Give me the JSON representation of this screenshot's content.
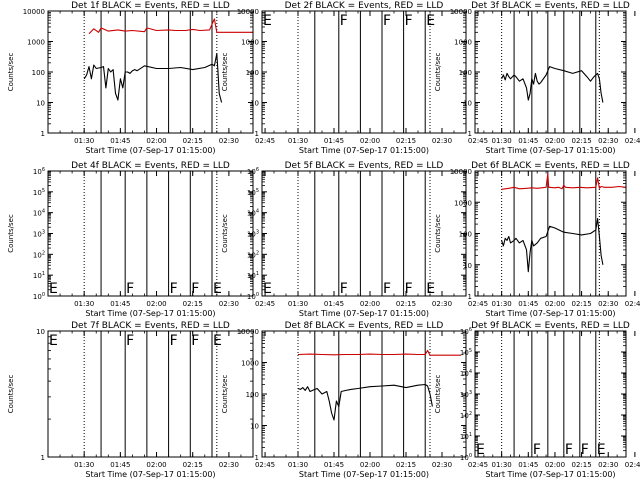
{
  "colors": {
    "events": "#000000",
    "lld": "#cc0000",
    "axes": "#000000",
    "background": "#ffffff"
  },
  "chart_data": [
    {
      "type": "line",
      "title": "Det 1f BLACK = Events, RED = LLD",
      "xlabel": "Start Time (07-Sep-17 01:15:00)",
      "ylabel": "Counts/sec",
      "scale": "log",
      "ylim": [
        1,
        10000
      ],
      "yticks": [
        "1",
        "10",
        "100",
        "1000",
        "10000"
      ],
      "xlim": [
        15,
        100
      ],
      "xticks": [
        "01:30",
        "01:45",
        "02:00",
        "02:15",
        "02:30",
        "02:45"
      ],
      "dotted_lines_min": [
        30,
        85,
        100
      ],
      "solid_lines_min": [
        37,
        47,
        56,
        65,
        74,
        83
      ],
      "markers": [],
      "series": [
        {
          "name": "LLD",
          "color_key": "lld",
          "x": [
            32,
            34,
            36,
            37,
            40,
            44,
            47,
            50,
            55,
            56,
            60,
            65,
            68,
            72,
            75,
            78,
            82,
            84,
            85,
            86,
            88,
            92,
            96,
            100
          ],
          "y": [
            1800,
            2600,
            2000,
            2800,
            2200,
            2400,
            2200,
            2300,
            2100,
            2800,
            2300,
            2400,
            2300,
            2300,
            2500,
            2300,
            2400,
            5500,
            2000,
            2000,
            2000,
            2000,
            2000,
            2000
          ]
        },
        {
          "name": "Events",
          "color_key": "events",
          "x": [
            30,
            31,
            32,
            33,
            34,
            35,
            37,
            38,
            39,
            40,
            41,
            42,
            43,
            44,
            45,
            46,
            47,
            48,
            49,
            50,
            51,
            52,
            55,
            60,
            65,
            70,
            75,
            80,
            83,
            84,
            85,
            85.5,
            86,
            87
          ],
          "y": [
            60,
            80,
            150,
            60,
            170,
            130,
            140,
            150,
            30,
            130,
            100,
            120,
            20,
            12,
            60,
            30,
            100,
            100,
            90,
            110,
            120,
            110,
            160,
            130,
            130,
            140,
            120,
            140,
            180,
            160,
            400,
            100,
            20,
            10
          ]
        }
      ]
    },
    {
      "type": "line",
      "title": "Det 2f BLACK = Events, RED = LLD",
      "xlabel": "Start Time (07-Sep-17 01:15:00)",
      "ylabel": "Counts/sec",
      "scale": "log",
      "ylim": [
        1,
        10000
      ],
      "yticks": [
        "1",
        "10",
        "100",
        "1000",
        "10000"
      ],
      "xlim": [
        15,
        100
      ],
      "xticks": [
        "01:30",
        "01:45",
        "02:00",
        "02:15",
        "02:30",
        "02:45"
      ],
      "dotted_lines_min": [
        15,
        30,
        85,
        100
      ],
      "solid_lines_min": [
        37,
        47,
        56,
        65,
        74,
        83
      ],
      "markers": [
        {
          "label": "E",
          "x": 15,
          "pos": "top"
        },
        {
          "label": "F",
          "x": 47,
          "pos": "top"
        },
        {
          "label": "F",
          "x": 65,
          "pos": "top"
        },
        {
          "label": "F",
          "x": 74,
          "pos": "top"
        },
        {
          "label": "E",
          "x": 83,
          "pos": "top"
        }
      ],
      "series": []
    },
    {
      "type": "line",
      "title": "Det 3f BLACK = Events, RED = LLD",
      "xlabel": "Start Time (07-Sep-17 01:15:00)",
      "ylabel": "Counts/sec",
      "scale": "log",
      "ylim": [
        1,
        10000
      ],
      "yticks": [
        "1",
        "10",
        "100",
        "1000",
        "10000"
      ],
      "xlim": [
        15,
        100
      ],
      "xticks": [
        "01:30",
        "01:45",
        "02:00",
        "02:15",
        "02:30",
        "02:45"
      ],
      "dotted_lines_min": [
        30,
        85,
        100
      ],
      "solid_lines_min": [
        37,
        47,
        56,
        65,
        74,
        83
      ],
      "markers": [],
      "series": [
        {
          "name": "Events",
          "color_key": "events",
          "x": [
            30,
            31,
            32,
            33,
            34,
            35,
            37,
            38,
            40,
            42,
            44,
            45,
            46,
            47,
            48,
            49,
            50,
            51,
            52,
            55,
            57,
            60,
            65,
            70,
            75,
            78,
            80,
            82,
            84,
            85,
            86,
            87
          ],
          "y": [
            60,
            80,
            55,
            90,
            70,
            60,
            80,
            70,
            50,
            60,
            30,
            12,
            20,
            60,
            40,
            90,
            50,
            40,
            45,
            80,
            150,
            130,
            110,
            90,
            110,
            70,
            50,
            70,
            90,
            60,
            20,
            10
          ]
        }
      ]
    },
    {
      "type": "line",
      "title": "Det 4f BLACK = Events, RED = LLD",
      "xlabel": "Start Time (07-Sep-17 01:15:00)",
      "ylabel": "Counts/sec",
      "scale": "log",
      "ylim": [
        1,
        1000000
      ],
      "yticks": [
        "10^0",
        "10^1",
        "10^2",
        "10^3",
        "10^4",
        "10^5",
        "10^6"
      ],
      "xlim": [
        15,
        100
      ],
      "xticks": [
        "01:30",
        "01:45",
        "02:00",
        "02:15",
        "02:30",
        "02:45"
      ],
      "dotted_lines_min": [
        15,
        30,
        85,
        100
      ],
      "solid_lines_min": [
        37,
        47,
        56,
        65,
        74,
        83
      ],
      "markers": [
        {
          "label": "E",
          "x": 15,
          "pos": "bottom"
        },
        {
          "label": "F",
          "x": 47,
          "pos": "bottom"
        },
        {
          "label": "F",
          "x": 65,
          "pos": "bottom"
        },
        {
          "label": "F",
          "x": 74,
          "pos": "bottom"
        },
        {
          "label": "E",
          "x": 83,
          "pos": "bottom"
        }
      ],
      "series": []
    },
    {
      "type": "line",
      "title": "Det 5f BLACK = Events, RED = LLD",
      "xlabel": "Start Time (07-Sep-17 01:15:00)",
      "ylabel": "Counts/sec",
      "scale": "log",
      "ylim": [
        1,
        1000000
      ],
      "yticks": [
        "10^0",
        "10^1",
        "10^2",
        "10^3",
        "10^4",
        "10^5",
        "10^6"
      ],
      "xlim": [
        15,
        100
      ],
      "xticks": [
        "01:30",
        "01:45",
        "02:00",
        "02:15",
        "02:30",
        "02:45"
      ],
      "dotted_lines_min": [
        15,
        30,
        85,
        100
      ],
      "solid_lines_min": [
        37,
        47,
        56,
        65,
        74,
        83
      ],
      "markers": [
        {
          "label": "E",
          "x": 15,
          "pos": "bottom"
        },
        {
          "label": "F",
          "x": 47,
          "pos": "bottom"
        },
        {
          "label": "F",
          "x": 65,
          "pos": "bottom"
        },
        {
          "label": "F",
          "x": 74,
          "pos": "bottom"
        },
        {
          "label": "E",
          "x": 83,
          "pos": "bottom"
        }
      ],
      "series": []
    },
    {
      "type": "line",
      "title": "Det 6f BLACK = Events, RED = LLD",
      "xlabel": "Start Time (07-Sep-17 01:15:00)",
      "ylabel": "Counts/sec",
      "scale": "log",
      "ylim": [
        1,
        10000
      ],
      "yticks": [
        "1",
        "10",
        "100",
        "1000",
        "10000"
      ],
      "xlim": [
        15,
        100
      ],
      "xticks": [
        "01:30",
        "01:45",
        "02:00",
        "02:15",
        "02:30",
        "02:45"
      ],
      "dotted_lines_min": [
        30,
        85,
        100
      ],
      "solid_lines_min": [
        37,
        47,
        56,
        65,
        74,
        83
      ],
      "markers": [],
      "series": [
        {
          "name": "LLD",
          "color_key": "lld",
          "x": [
            30,
            34,
            37,
            40,
            44,
            47,
            50,
            55,
            56,
            56.5,
            57,
            60,
            62,
            64,
            65,
            66,
            70,
            74,
            78,
            83,
            84,
            85,
            86,
            88,
            92,
            96,
            100
          ],
          "y": [
            2600,
            2800,
            3000,
            2700,
            2800,
            2900,
            2800,
            3000,
            8000,
            3000,
            3000,
            2900,
            3000,
            2700,
            3500,
            3000,
            2900,
            3000,
            2900,
            3000,
            6000,
            2800,
            3200,
            3000,
            3000,
            3200,
            3000
          ]
        },
        {
          "name": "Events",
          "color_key": "events",
          "x": [
            30,
            31,
            32,
            33,
            34,
            35,
            37,
            38,
            40,
            42,
            44,
            45,
            46,
            47,
            48,
            50,
            52,
            55,
            57,
            60,
            65,
            70,
            75,
            80,
            83,
            84,
            85,
            86,
            87
          ],
          "y": [
            60,
            40,
            70,
            60,
            80,
            50,
            60,
            70,
            50,
            60,
            30,
            6,
            25,
            60,
            40,
            50,
            70,
            80,
            170,
            150,
            110,
            100,
            90,
            100,
            130,
            300,
            80,
            20,
            10
          ]
        }
      ]
    },
    {
      "type": "line",
      "title": "Det 7f BLACK = Events, RED = LLD",
      "xlabel": "Start Time (07-Sep-17 01:15:00)",
      "ylabel": "Counts/sec",
      "scale": "log",
      "ylim": [
        1,
        10
      ],
      "yticks": [
        "1",
        "10"
      ],
      "xlim": [
        15,
        100
      ],
      "xticks": [
        "01:30",
        "01:45",
        "02:00",
        "02:15",
        "02:30",
        "02:45"
      ],
      "dotted_lines_min": [
        15,
        30,
        85,
        100
      ],
      "solid_lines_min": [
        37,
        47,
        56,
        65,
        74,
        83
      ],
      "markers": [
        {
          "label": "E",
          "x": 15,
          "pos": "top"
        },
        {
          "label": "F",
          "x": 47,
          "pos": "top"
        },
        {
          "label": "F",
          "x": 65,
          "pos": "top"
        },
        {
          "label": "F",
          "x": 74,
          "pos": "top"
        },
        {
          "label": "E",
          "x": 83,
          "pos": "top"
        }
      ],
      "series": []
    },
    {
      "type": "line",
      "title": "Det 8f BLACK = Events, RED = LLD",
      "xlabel": "Start Time (07-Sep-17 01:15:00)",
      "ylabel": "Counts/sec",
      "scale": "log",
      "ylim": [
        1,
        10000
      ],
      "yticks": [
        "1",
        "10",
        "100",
        "1000",
        "10000"
      ],
      "xlim": [
        15,
        100
      ],
      "xticks": [
        "01:30",
        "01:45",
        "02:00",
        "02:15",
        "02:30",
        "02:45"
      ],
      "dotted_lines_min": [
        30,
        85,
        100
      ],
      "solid_lines_min": [
        37,
        47,
        56,
        65,
        74,
        83
      ],
      "markers": [],
      "series": [
        {
          "name": "LLD",
          "color_key": "lld",
          "x": [
            30,
            35,
            40,
            45,
            50,
            55,
            60,
            65,
            70,
            75,
            80,
            83,
            84,
            85,
            86,
            88,
            92,
            96,
            98
          ],
          "y": [
            1800,
            1850,
            1800,
            1750,
            1800,
            1800,
            1850,
            1800,
            1800,
            1850,
            1800,
            1800,
            2400,
            1700,
            1700,
            1700,
            1700,
            1700,
            1700
          ]
        },
        {
          "name": "Events",
          "color_key": "events",
          "x": [
            30,
            31,
            32,
            33,
            34,
            35,
            37,
            38,
            40,
            42,
            43,
            44,
            45,
            46,
            47,
            48,
            50,
            52,
            55,
            60,
            65,
            70,
            75,
            80,
            83,
            84,
            85,
            86
          ],
          "y": [
            150,
            140,
            160,
            130,
            170,
            120,
            140,
            150,
            100,
            120,
            60,
            25,
            15,
            60,
            40,
            120,
            130,
            140,
            150,
            170,
            180,
            190,
            160,
            190,
            200,
            180,
            100,
            40
          ]
        }
      ]
    },
    {
      "type": "line",
      "title": "Det 9f BLACK = Events, RED = LLD",
      "xlabel": "Start Time (07-Sep-17 01:15:00)",
      "ylabel": "Counts/sec",
      "scale": "log",
      "ylim": [
        1,
        1000000
      ],
      "yticks": [
        "10^0",
        "10^1",
        "10^2",
        "10^3",
        "10^4",
        "10^5",
        "10^6"
      ],
      "xlim": [
        15,
        100
      ],
      "xticks": [
        "01:30",
        "01:45",
        "02:00",
        "02:15",
        "02:30",
        "02:45"
      ],
      "dotted_lines_min": [
        15,
        30,
        85,
        100
      ],
      "solid_lines_min": [
        37,
        47,
        56,
        65,
        74,
        83
      ],
      "markers": [
        {
          "label": "E",
          "x": 15,
          "pos": "bottom"
        },
        {
          "label": "F",
          "x": 47,
          "pos": "bottom"
        },
        {
          "label": "F",
          "x": 65,
          "pos": "bottom"
        },
        {
          "label": "F",
          "x": 74,
          "pos": "bottom"
        },
        {
          "label": "E",
          "x": 83,
          "pos": "bottom"
        }
      ],
      "series": []
    }
  ]
}
